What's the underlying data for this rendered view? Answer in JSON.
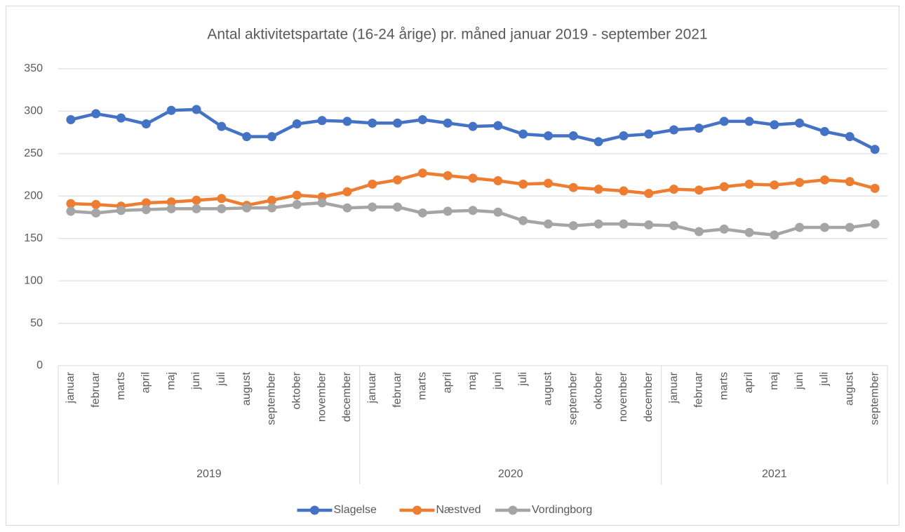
{
  "chart_data": {
    "type": "line",
    "title": "Antal aktivitetspartate (16-24 årige) pr. måned januar 2019 - september 2021",
    "category_groups": [
      {
        "label": "2019",
        "categories": [
          "januar",
          "februar",
          "marts",
          "april",
          "maj",
          "juni",
          "juli",
          "august",
          "september",
          "oktober",
          "november",
          "december"
        ]
      },
      {
        "label": "2020",
        "categories": [
          "januar",
          "februar",
          "marts",
          "april",
          "maj",
          "juni",
          "juli",
          "august",
          "september",
          "oktober",
          "november",
          "december"
        ]
      },
      {
        "label": "2021",
        "categories": [
          "januar",
          "februar",
          "marts",
          "april",
          "maj",
          "juni",
          "juli",
          "august",
          "september"
        ]
      }
    ],
    "series": [
      {
        "name": "Slagelse",
        "color": "#4472c4",
        "values": [
          290,
          297,
          292,
          285,
          301,
          302,
          282,
          270,
          270,
          285,
          289,
          288,
          286,
          286,
          290,
          286,
          282,
          283,
          273,
          271,
          271,
          264,
          271,
          273,
          278,
          280,
          288,
          288,
          284,
          286,
          276,
          270,
          255
        ]
      },
      {
        "name": "Næstved",
        "color": "#ed7d31",
        "values": [
          191,
          190,
          188,
          192,
          193,
          195,
          197,
          189,
          195,
          201,
          199,
          205,
          214,
          219,
          227,
          224,
          221,
          218,
          214,
          215,
          210,
          208,
          206,
          203,
          208,
          207,
          211,
          214,
          213,
          216,
          219,
          217,
          209
        ]
      },
      {
        "name": "Vordingborg",
        "color": "#a5a5a5",
        "values": [
          182,
          180,
          183,
          184,
          185,
          185,
          185,
          186,
          186,
          190,
          192,
          186,
          187,
          187,
          180,
          182,
          183,
          181,
          171,
          167,
          165,
          167,
          167,
          166,
          165,
          158,
          161,
          157,
          154,
          163,
          163,
          163,
          167
        ]
      }
    ],
    "ylim": [
      0,
      350
    ],
    "yticks": [
      0,
      50,
      100,
      150,
      200,
      250,
      300,
      350
    ],
    "grid": true,
    "legend": "bottom"
  }
}
